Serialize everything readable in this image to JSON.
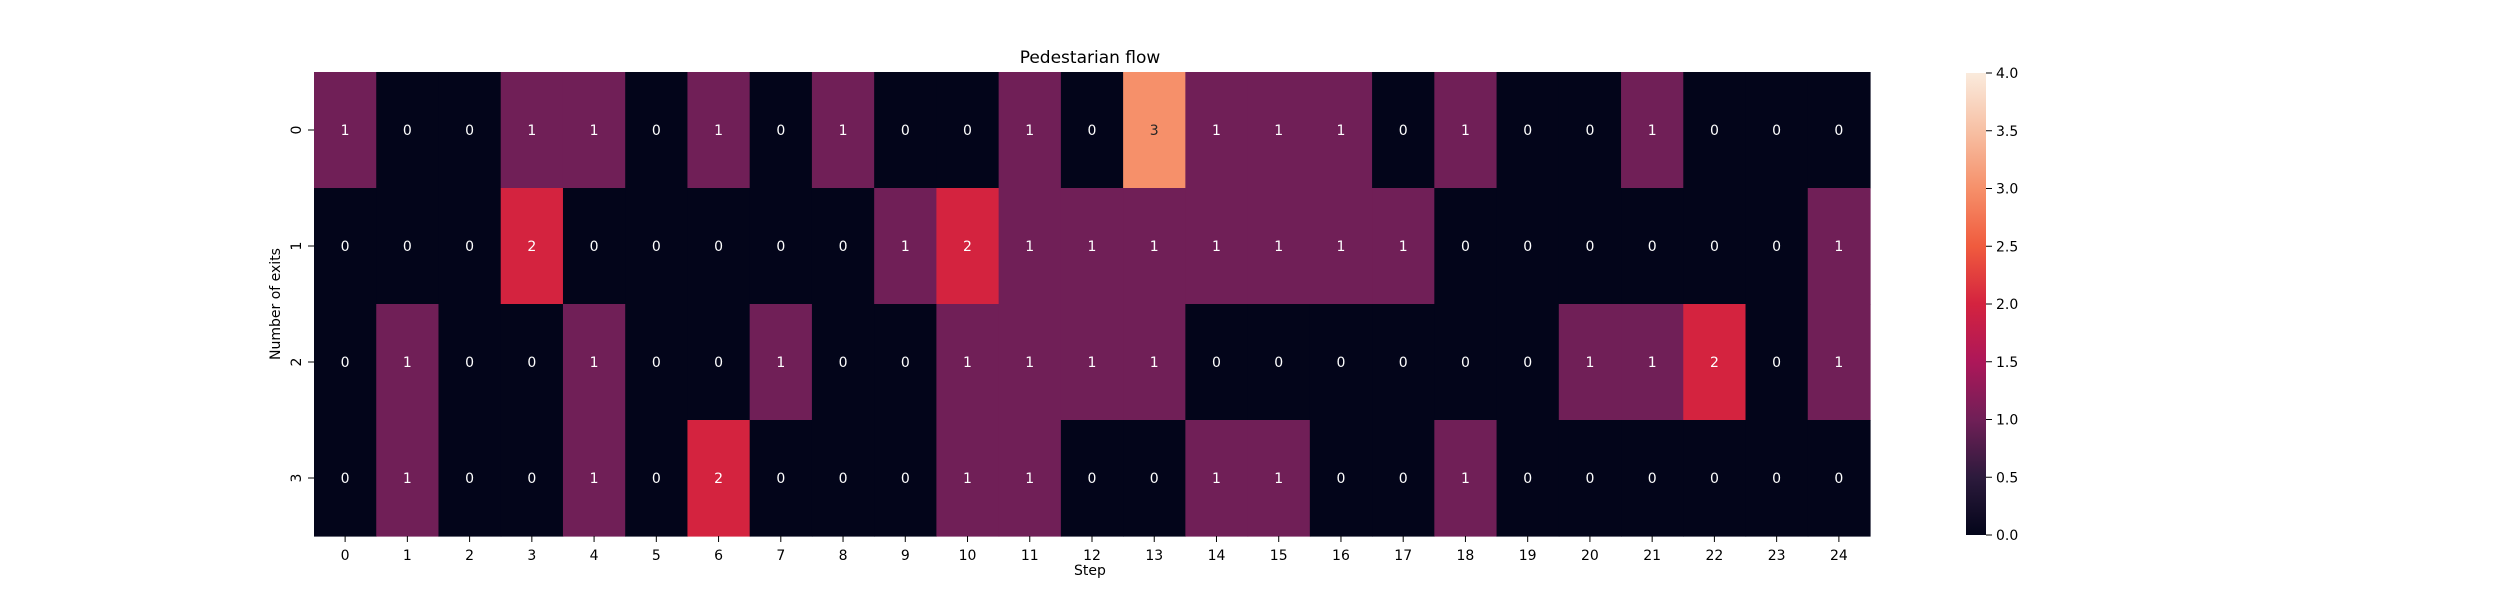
{
  "chart_data": {
    "type": "heatmap",
    "title": "Pedestarian flow",
    "xlabel": "Step",
    "ylabel": "Number of exits",
    "x_categories": [
      "0",
      "1",
      "2",
      "3",
      "4",
      "5",
      "6",
      "7",
      "8",
      "9",
      "10",
      "11",
      "12",
      "13",
      "14",
      "15",
      "16",
      "17",
      "18",
      "19",
      "20",
      "21",
      "22",
      "23",
      "24"
    ],
    "y_categories": [
      "0",
      "1",
      "2",
      "3"
    ],
    "values": [
      [
        1,
        0,
        0,
        1,
        1,
        0,
        1,
        0,
        1,
        0,
        0,
        1,
        0,
        3,
        1,
        1,
        1,
        0,
        1,
        0,
        0,
        1,
        0,
        0,
        0
      ],
      [
        0,
        0,
        0,
        2,
        0,
        0,
        0,
        0,
        0,
        1,
        2,
        1,
        1,
        1,
        1,
        1,
        1,
        1,
        0,
        0,
        0,
        0,
        0,
        0,
        1
      ],
      [
        0,
        1,
        0,
        0,
        1,
        0,
        0,
        1,
        0,
        0,
        1,
        1,
        1,
        1,
        0,
        0,
        0,
        0,
        0,
        0,
        1,
        1,
        2,
        0,
        1
      ],
      [
        0,
        1,
        0,
        0,
        1,
        0,
        2,
        0,
        0,
        0,
        1,
        1,
        0,
        0,
        1,
        1,
        0,
        0,
        1,
        0,
        0,
        0,
        0,
        0,
        0
      ]
    ],
    "annotations": true,
    "colormap": "rocket",
    "vmin": 0,
    "vmax": 4,
    "colorbar_ticks": [
      "0.0",
      "0.5",
      "1.0",
      "1.5",
      "2.0",
      "2.5",
      "3.0",
      "3.5",
      "4.0"
    ],
    "legend_placement": "right",
    "grid": false
  }
}
